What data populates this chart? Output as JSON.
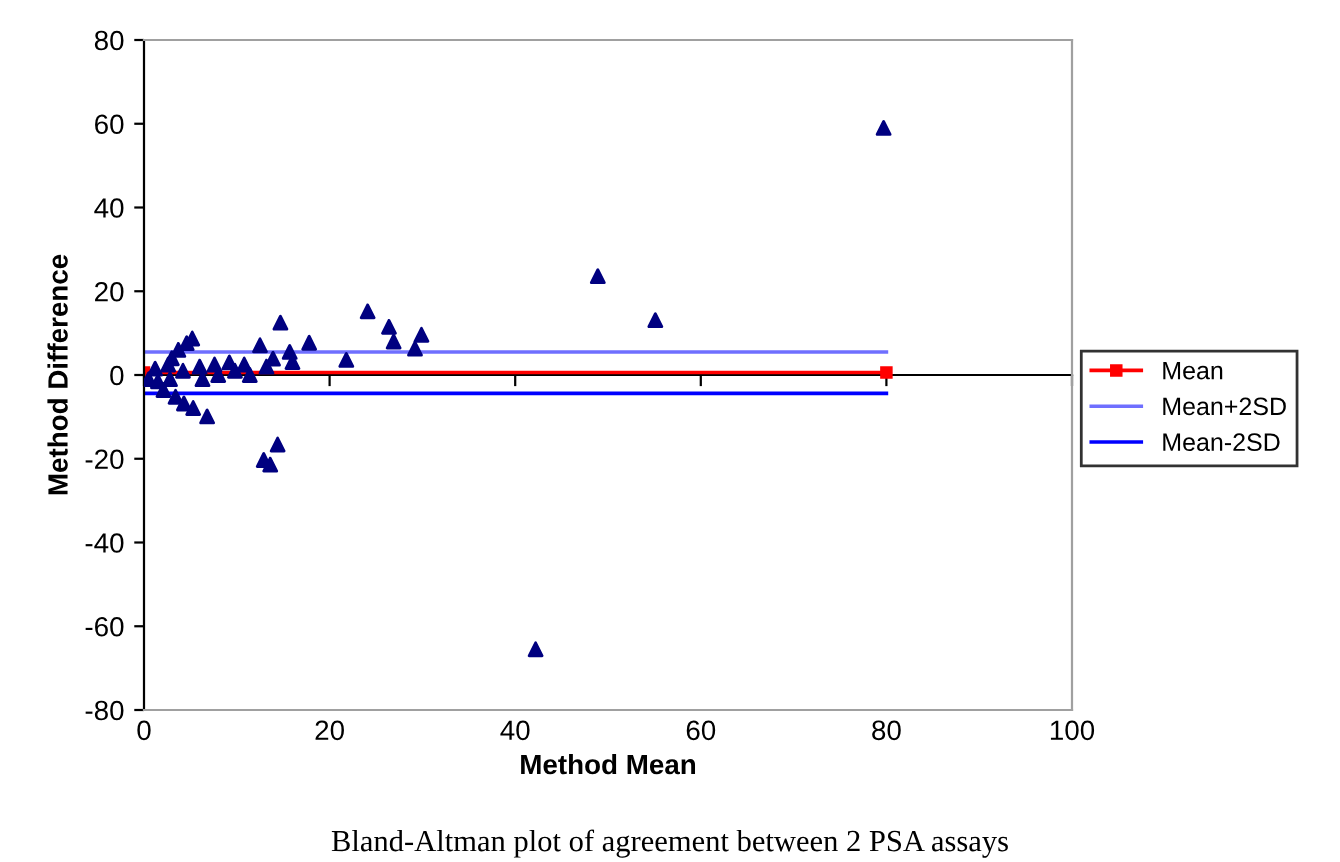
{
  "chart_data": {
    "type": "scatter",
    "xlabel": "Method Mean",
    "ylabel": "Method Difference",
    "annotations": [
      "Bland-Altman plot of agreement between 2 PSA assays"
    ],
    "xlim": [
      0,
      100
    ],
    "ylim": [
      -80,
      80
    ],
    "xticks": [
      0,
      20,
      40,
      60,
      80,
      100
    ],
    "yticks": [
      -80,
      -60,
      -40,
      -20,
      0,
      20,
      40,
      60,
      80
    ],
    "legend": "right",
    "series": [
      {
        "color": "#000080",
        "marker": "triangle",
        "x": [
          79.7,
          48.9,
          55.1,
          42.2,
          24.1,
          26.4,
          26.9,
          29.2,
          29.9,
          21.8,
          17.8,
          14.7,
          14.4,
          12.9,
          13.6,
          6.8,
          5.3,
          4.3,
          3.4,
          2.1,
          5.2,
          4.6,
          3.7,
          12.5,
          15.7,
          16,
          13.9,
          13.2,
          0.5,
          1.5,
          1.2,
          2.8,
          2.6,
          4.2,
          6.0,
          7.6,
          9.2,
          10.8,
          6.3,
          8.0,
          9.8,
          11.4,
          3.0
        ],
        "values": [
          59,
          23.6,
          13.1,
          -65.5,
          15.2,
          11.5,
          8.0,
          6.3,
          9.6,
          3.6,
          7.7,
          12.5,
          -16.6,
          -20.3,
          -21.4,
          -9.9,
          -7.9,
          -6.8,
          -5.2,
          -3.6,
          8.7,
          7.6,
          6.0,
          7.1,
          5.5,
          3.1,
          3.9,
          2.0,
          -1,
          -1.5,
          1.5,
          -1,
          2.5,
          1,
          2,
          2.5,
          3,
          2.5,
          -1,
          0,
          1,
          0,
          4
        ]
      },
      {
        "type": "line",
        "name": "Mean",
        "color": "#ff0000",
        "marker": "square",
        "x": [
          0,
          80
        ],
        "values": [
          0.6,
          0.6
        ]
      },
      {
        "type": "line",
        "name": "Mean+2SD",
        "color": "#6f6fff",
        "x": [
          0,
          80
        ],
        "values": [
          5.5,
          5.5
        ]
      },
      {
        "type": "line",
        "name": "Mean-2SD",
        "color": "#0000ff",
        "x": [
          0,
          80
        ],
        "values": [
          -4.4,
          -4.4
        ]
      }
    ]
  }
}
